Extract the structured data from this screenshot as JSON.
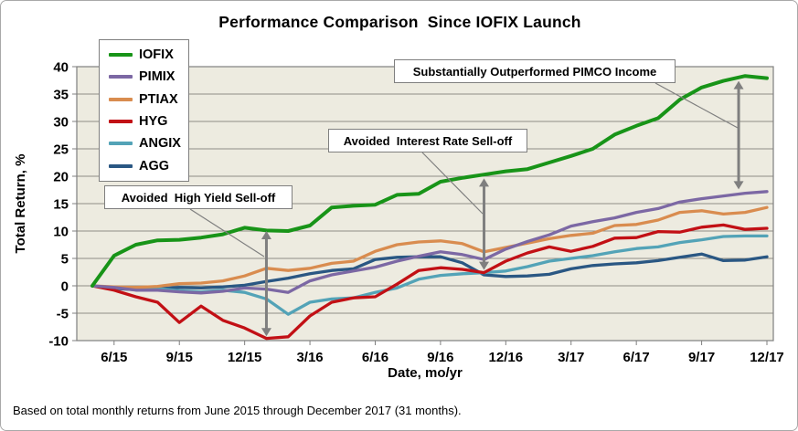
{
  "title": "Performance Comparison  Since IOFIX Launch",
  "footer": "Based on total monthly returns from June 2015 through December 2017 (31 months).",
  "chart_data": {
    "type": "line",
    "title": "Performance Comparison  Since IOFIX Launch",
    "xlabel": "Date, mo/yr",
    "ylabel": "Total Return, %",
    "ylim": [
      -10,
      40
    ],
    "ytick_step": 5,
    "grid": "horizontal",
    "legend_position": "top-left-inside",
    "plot_bg": "#edebe0",
    "gridline_color": "#8f8e86",
    "border_color": "#7f7f7f",
    "arrow_color": "#7f7f7f",
    "x_tick_labels": [
      "6/15",
      "9/15",
      "12/15",
      "3/16",
      "6/16",
      "9/16",
      "12/16",
      "3/17",
      "6/17",
      "9/17",
      "12/17"
    ],
    "x_labels_all": [
      "5/15",
      "6/15",
      "7/15",
      "8/15",
      "9/15",
      "10/15",
      "11/15",
      "12/15",
      "1/16",
      "2/16",
      "3/16",
      "4/16",
      "5/16",
      "6/16",
      "7/16",
      "8/16",
      "9/16",
      "10/16",
      "11/16",
      "12/16",
      "1/17",
      "2/17",
      "3/17",
      "4/17",
      "5/17",
      "6/17",
      "7/17",
      "8/17",
      "9/17",
      "10/17",
      "11/17",
      "12/17"
    ],
    "series": [
      {
        "name": "IOFIX",
        "color": "#189418",
        "values": [
          0,
          5.5,
          7.5,
          8.3,
          8.4,
          8.8,
          9.4,
          10.6,
          10.1,
          10.0,
          11.0,
          14.3,
          14.6,
          14.8,
          16.6,
          16.8,
          19.0,
          19.7,
          20.3,
          20.9,
          21.3,
          22.5,
          23.7,
          25.0,
          27.6,
          29.2,
          30.6,
          34.0,
          36.2,
          37.4,
          38.3,
          37.9
        ]
      },
      {
        "name": "PIMIX",
        "color": "#7c68a4",
        "values": [
          0,
          -0.3,
          -0.8,
          -0.8,
          -1.1,
          -1.3,
          -1.0,
          -0.4,
          -0.6,
          -1.2,
          0.9,
          2.0,
          2.7,
          3.4,
          4.5,
          5.4,
          6.2,
          5.7,
          4.8,
          6.7,
          8.1,
          9.3,
          10.9,
          11.7,
          12.4,
          13.4,
          14.1,
          15.3,
          15.9,
          16.4,
          16.9,
          17.2
        ]
      },
      {
        "name": "PTIAX",
        "color": "#d98c4f",
        "values": [
          0,
          -0.2,
          -0.3,
          -0.1,
          0.4,
          0.5,
          0.9,
          1.8,
          3.2,
          2.8,
          3.2,
          4.1,
          4.5,
          6.3,
          7.5,
          8.0,
          8.2,
          7.7,
          6.2,
          7.0,
          7.8,
          8.6,
          9.2,
          9.6,
          11.0,
          11.2,
          12.0,
          13.4,
          13.7,
          13.1,
          13.4,
          14.3
        ]
      },
      {
        "name": "HYG",
        "color": "#c21015",
        "values": [
          0,
          -0.8,
          -2.0,
          -3.0,
          -6.7,
          -3.7,
          -6.3,
          -7.7,
          -9.6,
          -9.3,
          -5.5,
          -3.0,
          -2.2,
          -2.0,
          0.3,
          2.8,
          3.3,
          3.0,
          2.4,
          4.5,
          6.0,
          7.1,
          6.3,
          7.2,
          8.7,
          8.8,
          9.9,
          9.8,
          10.7,
          11.1,
          10.3,
          10.5
        ]
      },
      {
        "name": "ANGIX",
        "color": "#53a3b7",
        "values": [
          0,
          -0.4,
          -0.6,
          -0.5,
          -0.9,
          -1.1,
          -0.8,
          -1.2,
          -2.4,
          -5.2,
          -3.0,
          -2.4,
          -2.2,
          -1.2,
          -0.4,
          1.2,
          1.9,
          2.2,
          2.4,
          2.7,
          3.5,
          4.5,
          5.0,
          5.5,
          6.2,
          6.8,
          7.1,
          7.9,
          8.4,
          9.0,
          9.1,
          9.1
        ]
      },
      {
        "name": "AGG",
        "color": "#2a5783",
        "values": [
          0,
          -0.5,
          -0.7,
          -0.5,
          -0.3,
          -0.4,
          -0.2,
          0.1,
          0.8,
          1.4,
          2.2,
          2.8,
          3.1,
          4.8,
          5.2,
          5.3,
          5.3,
          4.2,
          2.0,
          1.7,
          1.8,
          2.1,
          3.1,
          3.7,
          4.0,
          4.2,
          4.6,
          5.2,
          5.8,
          4.6,
          4.7,
          5.3
        ]
      }
    ],
    "annotations": [
      {
        "label": "Avoided  High Yield Sell-off",
        "arrow": {
          "month": 8,
          "v_top": 10.0,
          "v_bottom": -9.2,
          "double": true
        }
      },
      {
        "label": "Avoided  Interest Rate Sell-off",
        "arrow": {
          "month": 18,
          "v_top": 19.6,
          "v_bottom": 2.9,
          "double": true
        }
      },
      {
        "label": "Substantially Outperformed PIMCO Income",
        "arrow": {
          "month": 29.7,
          "v_top": 37.4,
          "v_bottom": 17.6,
          "double": true
        }
      }
    ]
  },
  "legend": {
    "items": [
      "IOFIX",
      "PIMIX",
      "PTIAX",
      "HYG",
      "ANGIX",
      "AGG"
    ]
  }
}
